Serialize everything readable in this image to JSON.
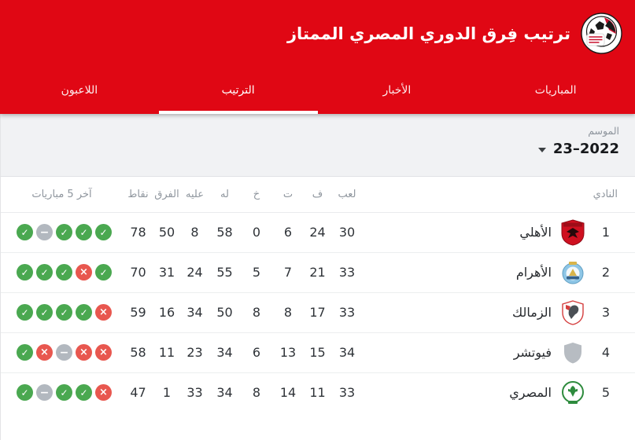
{
  "colors": {
    "accent_red": "#e00714",
    "season_bg": "#f1f2f4",
    "win_green": "#4aa850",
    "draw_gray": "#b2b8bf",
    "loss_red": "#e8574f"
  },
  "header": {
    "title": "ترتيب فِرق الدوري المصري الممتاز",
    "logo_icon": "egyptian-football-association-logo"
  },
  "tabs": [
    {
      "label": "المباريات",
      "active": false
    },
    {
      "label": "الأخبار",
      "active": false
    },
    {
      "label": "الترتيب",
      "active": true
    },
    {
      "label": "اللاعبون",
      "active": false
    }
  ],
  "season": {
    "label": "الموسم",
    "value": "23–2022",
    "dropdown_icon": "caret-down-icon"
  },
  "table": {
    "headers": {
      "club": "النادي",
      "played": "لعب",
      "wins": "ف",
      "draws": "ت",
      "losses": "خ",
      "goals_for": "له",
      "goals_against": "عليه",
      "goal_diff": "الفرق",
      "points": "نقاط",
      "form": "آخر 5 مباريات"
    },
    "form_icons": {
      "win": "✓",
      "draw": "−",
      "loss": "×"
    },
    "rows": [
      {
        "rank": "1",
        "club": "الأهلي",
        "logo": "al-ahly-badge",
        "played": "30",
        "wins": "24",
        "draws": "6",
        "losses": "0",
        "goals_for": "58",
        "goals_against": "8",
        "goal_diff": "50",
        "points": "78",
        "form": [
          "win",
          "draw",
          "win",
          "win",
          "win"
        ]
      },
      {
        "rank": "2",
        "club": "الأهرام",
        "logo": "al-ahram-badge",
        "played": "33",
        "wins": "21",
        "draws": "7",
        "losses": "5",
        "goals_for": "55",
        "goals_against": "24",
        "goal_diff": "31",
        "points": "70",
        "form": [
          "win",
          "win",
          "win",
          "loss",
          "win"
        ]
      },
      {
        "rank": "3",
        "club": "الزمالك",
        "logo": "zamalek-badge",
        "played": "33",
        "wins": "17",
        "draws": "8",
        "losses": "8",
        "goals_for": "50",
        "goals_against": "34",
        "goal_diff": "16",
        "points": "59",
        "form": [
          "win",
          "win",
          "win",
          "win",
          "loss"
        ]
      },
      {
        "rank": "4",
        "club": "فيوتشر",
        "logo": "future-placeholder-badge",
        "played": "34",
        "wins": "15",
        "draws": "13",
        "losses": "6",
        "goals_for": "34",
        "goals_against": "23",
        "goal_diff": "11",
        "points": "58",
        "form": [
          "win",
          "loss",
          "draw",
          "loss",
          "loss"
        ]
      },
      {
        "rank": "5",
        "club": "المصري",
        "logo": "al-masry-badge",
        "played": "33",
        "wins": "11",
        "draws": "14",
        "losses": "8",
        "goals_for": "34",
        "goals_against": "33",
        "goal_diff": "1",
        "points": "47",
        "form": [
          "win",
          "draw",
          "win",
          "win",
          "loss"
        ]
      }
    ]
  }
}
